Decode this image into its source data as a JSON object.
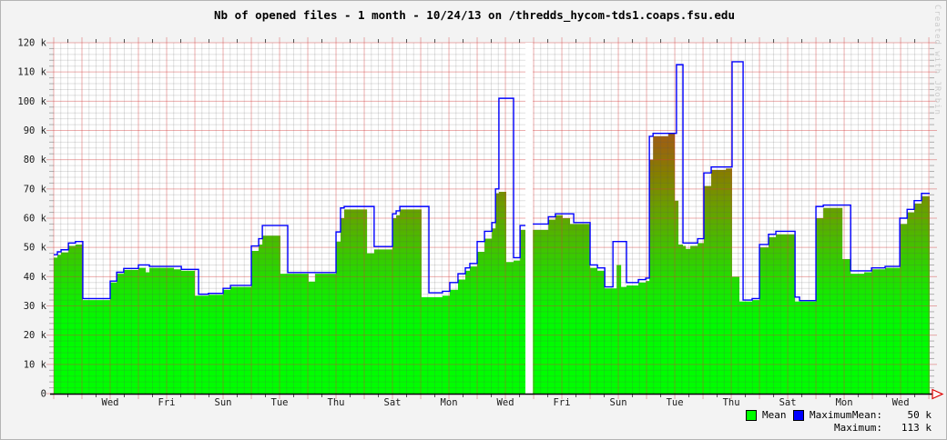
{
  "title": "Nb of opened files - 1 month - 10/24/13 on /thredds_hycom-tds1.coaps.fsu.edu",
  "watermark": "Created with JRobin",
  "legend": {
    "mean_label": "Mean",
    "max_label": "Maximum",
    "mean_caption": "Mean:",
    "max_caption": "Maximum:",
    "mean_value": "50 k",
    "max_value": "113 k",
    "mean_swatch_color": "#00ff00",
    "max_swatch_color": "#0000ff"
  },
  "colors": {
    "background": "#f3f3f3",
    "plot_background": "#ffffff",
    "grid_minor": "rgba(90,90,90,0.18)",
    "grid_major": "rgba(210,60,60,0.42)",
    "axis": "#000000",
    "arrow": "#dd0000",
    "max_line": "#0000ff",
    "area_gradient_bottom": "#00ff00",
    "area_gradient_top": "#b44722",
    "watermark": "#cccccc"
  },
  "chart_data": {
    "type": "area",
    "title": "Nb of opened files - 1 month - 10/24/13 on /thredds_hycom-tds1.coaps.fsu.edu",
    "xlabel": "",
    "ylabel": "Nb of opened files",
    "legend_position": "bottom-right",
    "grid": true,
    "x_axis": {
      "unit": "days",
      "range": [
        0,
        31.03
      ],
      "minor_step_days": 0.25,
      "major_step_days": 1,
      "label_days": [
        2,
        4,
        6,
        8,
        10,
        12,
        14,
        16,
        18,
        20,
        22,
        24,
        26,
        28,
        30
      ],
      "labels": [
        "Wed",
        "Fri",
        "Sun",
        "Tue",
        "Thu",
        "Sat",
        "Mon",
        "Wed",
        "Fri",
        "Sun",
        "Tue",
        "Thu",
        "Sat",
        "Mon",
        "Wed"
      ]
    },
    "y_axis": {
      "unit": "k files",
      "range_k": [
        0,
        120
      ],
      "minor_step_k": 2,
      "major_step_k": 10,
      "tick_labels": [
        "0",
        "10 k",
        "20 k",
        "30 k",
        "40 k",
        "50 k",
        "60 k",
        "70 k",
        "80 k",
        "90 k",
        "100 k",
        "110 k",
        "120 k"
      ]
    },
    "gap_day_range": [
      16.71,
      16.97
    ],
    "area_gradient_stops_fraction_of_120k": [
      [
        0.0,
        "#00ff00"
      ],
      [
        0.2,
        "#00fb00"
      ],
      [
        0.29,
        "#17e800"
      ],
      [
        0.375,
        "#33cf00"
      ],
      [
        0.46,
        "#52b400"
      ],
      [
        0.54,
        "#6d9c00"
      ],
      [
        0.625,
        "#857f00"
      ],
      [
        0.71,
        "#9a6410"
      ],
      [
        0.79,
        "#a65a16"
      ],
      [
        1.0,
        "#b44722"
      ]
    ],
    "series": [
      {
        "name": "Mean",
        "style": "stepped-area",
        "values_k_by_day_breakpoints": [
          [
            0,
            46.5
          ],
          [
            0.13,
            47.5
          ],
          [
            0.26,
            48.3
          ],
          [
            0.52,
            50.5
          ],
          [
            0.77,
            51
          ],
          [
            1.03,
            32
          ],
          [
            2.0,
            38
          ],
          [
            2.23,
            41
          ],
          [
            2.48,
            42.3
          ],
          [
            3.0,
            43
          ],
          [
            3.26,
            41.5
          ],
          [
            3.39,
            43
          ],
          [
            4.26,
            42.5
          ],
          [
            4.52,
            42
          ],
          [
            5.0,
            33.5
          ],
          [
            5.48,
            33.8
          ],
          [
            6.0,
            35.5
          ],
          [
            6.26,
            36.5
          ],
          [
            7.0,
            48.8
          ],
          [
            7.26,
            51
          ],
          [
            7.39,
            54
          ],
          [
            8.03,
            41
          ],
          [
            9.03,
            38.3
          ],
          [
            9.26,
            41
          ],
          [
            10.0,
            52
          ],
          [
            10.16,
            60
          ],
          [
            10.29,
            63
          ],
          [
            11.1,
            48
          ],
          [
            11.35,
            49.3
          ],
          [
            12.0,
            60
          ],
          [
            12.13,
            61
          ],
          [
            12.26,
            63
          ],
          [
            13.03,
            33
          ],
          [
            13.77,
            33.5
          ],
          [
            14.03,
            35.5
          ],
          [
            14.32,
            39
          ],
          [
            14.58,
            42
          ],
          [
            14.74,
            43.5
          ],
          [
            15.0,
            48.5
          ],
          [
            15.26,
            53
          ],
          [
            15.52,
            56.5
          ],
          [
            15.65,
            68.5
          ],
          [
            15.77,
            69
          ],
          [
            16.03,
            45
          ],
          [
            16.29,
            45.5
          ],
          [
            16.52,
            56
          ],
          [
            16.71,
            null
          ],
          [
            16.97,
            56
          ],
          [
            17.52,
            59.5
          ],
          [
            17.77,
            61
          ],
          [
            18.03,
            60
          ],
          [
            18.29,
            58
          ],
          [
            19.0,
            43
          ],
          [
            19.26,
            42
          ],
          [
            19.52,
            36
          ],
          [
            19.94,
            44
          ],
          [
            20.1,
            36.5
          ],
          [
            20.29,
            37
          ],
          [
            20.71,
            38
          ],
          [
            20.97,
            38.5
          ],
          [
            21.1,
            80
          ],
          [
            21.23,
            88
          ],
          [
            21.77,
            89
          ],
          [
            22.0,
            66
          ],
          [
            22.13,
            51
          ],
          [
            22.29,
            50.5
          ],
          [
            22.39,
            49.5
          ],
          [
            22.55,
            50.5
          ],
          [
            22.81,
            51.5
          ],
          [
            23.03,
            71
          ],
          [
            23.29,
            76.5
          ],
          [
            23.81,
            77
          ],
          [
            24.03,
            40
          ],
          [
            24.29,
            31.5
          ],
          [
            24.74,
            32
          ],
          [
            25.0,
            50
          ],
          [
            25.32,
            53.5
          ],
          [
            25.58,
            54.5
          ],
          [
            26.26,
            31.5
          ],
          [
            27.0,
            60
          ],
          [
            27.26,
            63.5
          ],
          [
            27.94,
            46
          ],
          [
            28.23,
            41
          ],
          [
            28.71,
            41.5
          ],
          [
            28.97,
            42.5
          ],
          [
            29.45,
            43
          ],
          [
            29.97,
            58
          ],
          [
            30.23,
            62
          ],
          [
            30.48,
            65
          ],
          [
            30.74,
            67.5
          ]
        ],
        "summary_value": "50 k"
      },
      {
        "name": "Maximum",
        "style": "stepped-line",
        "color": "#0000ff",
        "values_k_by_day_breakpoints": [
          [
            0,
            47.5
          ],
          [
            0.13,
            48.5
          ],
          [
            0.26,
            49.2
          ],
          [
            0.52,
            51.5
          ],
          [
            0.77,
            52
          ],
          [
            1.03,
            32.5
          ],
          [
            2.0,
            38.5
          ],
          [
            2.23,
            41.5
          ],
          [
            2.48,
            42.8
          ],
          [
            3.0,
            44
          ],
          [
            3.39,
            43.5
          ],
          [
            4.26,
            43.5
          ],
          [
            4.52,
            42.5
          ],
          [
            5.13,
            34
          ],
          [
            5.48,
            34.3
          ],
          [
            6.0,
            36
          ],
          [
            6.26,
            37
          ],
          [
            7.0,
            50.5
          ],
          [
            7.26,
            53
          ],
          [
            7.39,
            57.5
          ],
          [
            8.29,
            41.4
          ],
          [
            10.0,
            55.3
          ],
          [
            10.16,
            63.5
          ],
          [
            10.29,
            64
          ],
          [
            11.35,
            50.3
          ],
          [
            12.0,
            61.5
          ],
          [
            12.13,
            62.5
          ],
          [
            12.26,
            64
          ],
          [
            13.29,
            34.5
          ],
          [
            13.77,
            35
          ],
          [
            14.03,
            38
          ],
          [
            14.32,
            41
          ],
          [
            14.58,
            43
          ],
          [
            14.74,
            44.5
          ],
          [
            15.0,
            52
          ],
          [
            15.26,
            55.5
          ],
          [
            15.52,
            58.5
          ],
          [
            15.65,
            70
          ],
          [
            15.77,
            101
          ],
          [
            16.29,
            46.5
          ],
          [
            16.52,
            57.5
          ],
          [
            16.71,
            null
          ],
          [
            16.97,
            58
          ],
          [
            17.52,
            60.5
          ],
          [
            17.77,
            61.5
          ],
          [
            18.42,
            58.5
          ],
          [
            19.0,
            44
          ],
          [
            19.26,
            43
          ],
          [
            19.52,
            36.5
          ],
          [
            19.81,
            52
          ],
          [
            20.29,
            38
          ],
          [
            20.71,
            39
          ],
          [
            20.97,
            39.5
          ],
          [
            21.1,
            88
          ],
          [
            21.23,
            89
          ],
          [
            22.06,
            112.5
          ],
          [
            22.29,
            51.5
          ],
          [
            22.81,
            53
          ],
          [
            23.03,
            75.5
          ],
          [
            23.29,
            77.5
          ],
          [
            24.03,
            113.5
          ],
          [
            24.42,
            32
          ],
          [
            24.74,
            32.5
          ],
          [
            25.0,
            51
          ],
          [
            25.32,
            54.5
          ],
          [
            25.58,
            55.5
          ],
          [
            26.26,
            33
          ],
          [
            26.42,
            31.8
          ],
          [
            27.0,
            64
          ],
          [
            27.26,
            64.5
          ],
          [
            28.23,
            42
          ],
          [
            28.97,
            43
          ],
          [
            29.45,
            43.5
          ],
          [
            29.97,
            60
          ],
          [
            30.23,
            63
          ],
          [
            30.48,
            66
          ],
          [
            30.74,
            68.5
          ]
        ],
        "summary_value": "113 k"
      }
    ]
  }
}
